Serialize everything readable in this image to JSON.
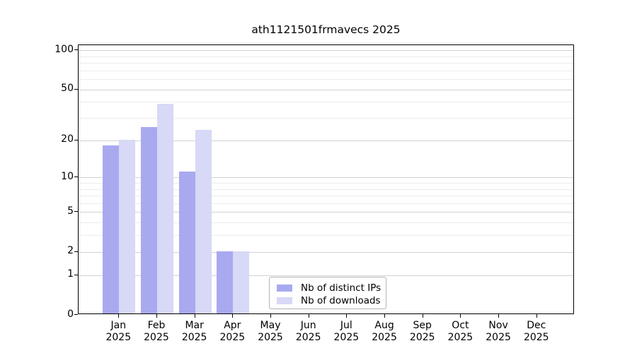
{
  "title": "ath1121501frmavecs 2025",
  "legend": {
    "items": [
      {
        "label": "Nb of distinct IPs",
        "color": "#a9a9f0"
      },
      {
        "label": "Nb of downloads",
        "color": "#d8d8f7"
      }
    ]
  },
  "y_axis": {
    "tick_labels": [
      100,
      50,
      20,
      10,
      5,
      2,
      1,
      0
    ],
    "minor_gridline_values": [
      3,
      4,
      6,
      7,
      8,
      9,
      30,
      40,
      60,
      70,
      80,
      90
    ],
    "scale": "log10(1+v)"
  },
  "x_axis": {
    "months": [
      "Jan",
      "Feb",
      "Mar",
      "Apr",
      "May",
      "Jun",
      "Jul",
      "Aug",
      "Sep",
      "Oct",
      "Nov",
      "Dec"
    ],
    "year": "2025"
  },
  "chart_data": {
    "type": "bar",
    "title": "ath1121501frmavecs 2025",
    "categories": [
      "Jan 2025",
      "Feb 2025",
      "Mar 2025",
      "Apr 2025",
      "May 2025",
      "Jun 2025",
      "Jul 2025",
      "Aug 2025",
      "Sep 2025",
      "Oct 2025",
      "Nov 2025",
      "Dec 2025"
    ],
    "series": [
      {
        "name": "Nb of distinct IPs",
        "color": "#a9a9f0",
        "values": [
          18,
          25,
          11,
          2,
          0,
          0,
          0,
          0,
          0,
          0,
          0,
          0
        ]
      },
      {
        "name": "Nb of downloads",
        "color": "#d8d8f7",
        "values": [
          20,
          38,
          24,
          2,
          0,
          0,
          0,
          0,
          0,
          0,
          0,
          0
        ]
      }
    ],
    "xlabel": "",
    "ylabel": "",
    "ylim": [
      0,
      110
    ],
    "yticks": [
      0,
      1,
      2,
      5,
      10,
      20,
      50,
      100
    ],
    "yscale": "log1p",
    "grid": true,
    "legend_position": "lower center"
  }
}
